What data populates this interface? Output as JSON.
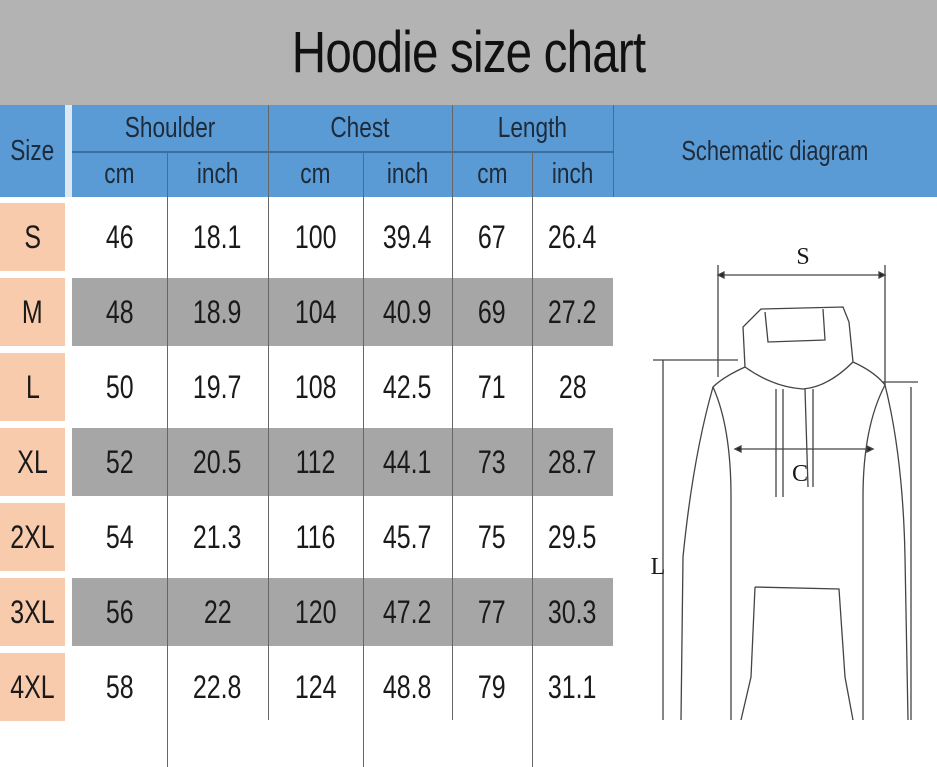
{
  "title": "Hoodie size chart",
  "header": {
    "size": "Size",
    "groups": [
      "Shoulder",
      "Chest",
      "Length"
    ],
    "units": [
      "cm",
      "inch",
      "cm",
      "inch",
      "cm",
      "inch"
    ],
    "schematic": "Schematic diagram"
  },
  "rows": [
    {
      "size": "S",
      "values": [
        "46",
        "18.1",
        "100",
        "39.4",
        "67",
        "26.4"
      ]
    },
    {
      "size": "M",
      "values": [
        "48",
        "18.9",
        "104",
        "40.9",
        "69",
        "27.2"
      ]
    },
    {
      "size": "L",
      "values": [
        "50",
        "19.7",
        "108",
        "42.5",
        "71",
        "28"
      ]
    },
    {
      "size": "XL",
      "values": [
        "52",
        "20.5",
        "112",
        "44.1",
        "73",
        "28.7"
      ]
    },
    {
      "size": "2XL",
      "values": [
        "54",
        "21.3",
        "116",
        "45.7",
        "75",
        "29.5"
      ]
    },
    {
      "size": "3XL",
      "values": [
        "56",
        "22",
        "120",
        "47.2",
        "77",
        "30.3"
      ]
    },
    {
      "size": "4XL",
      "values": [
        "58",
        "22.8",
        "124",
        "48.8",
        "79",
        "31.1"
      ]
    }
  ],
  "diagram_labels": {
    "shoulder": "S",
    "chest": "C",
    "length": "L"
  },
  "colors": {
    "header": "#5b9bd5",
    "size_cell": "#f8cbad",
    "alt_row": "#a6a6a6",
    "title_bar": "#b3b3b3"
  }
}
